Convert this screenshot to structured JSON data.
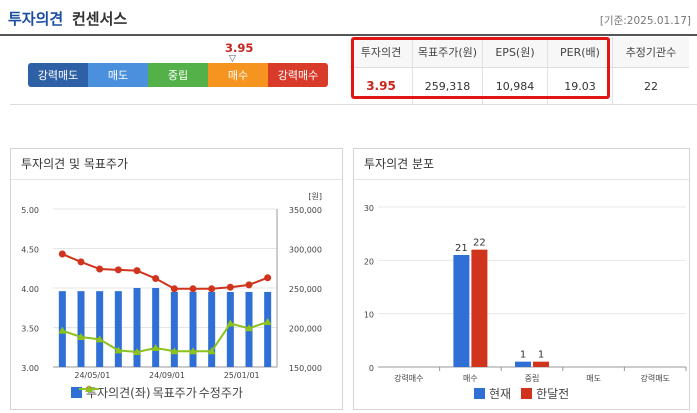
{
  "header": {
    "title_main": "투자의견",
    "title_sub": "컨센서스",
    "date": "[기준:2025.01.17]"
  },
  "rating_bar": {
    "labels": [
      "강력매도",
      "매도",
      "중립",
      "매수",
      "강력매수"
    ],
    "colors": [
      "#2e60a6",
      "#4a90dc",
      "#54b048",
      "#f5941e",
      "#d93b2b"
    ],
    "score_label": "3.95",
    "score": 3.95,
    "pointer": "▽"
  },
  "consensus_table": {
    "headers": [
      "투자의견",
      "목표주가(원)",
      "EPS(원)",
      "PER(배)",
      "추정기관수"
    ],
    "values": [
      "3.95",
      "259,318",
      "10,984",
      "19.03",
      "22"
    ]
  },
  "chart_data": [
    {
      "type": "bar",
      "title": "투자의견 및 목표주가",
      "y2_unit": "[원]",
      "x_ticks": [
        "24/05/01",
        "24/09/01",
        "25/01/01"
      ],
      "left_ticks": [
        "5.00",
        "4.50",
        "4.00",
        "3.50",
        "3.00"
      ],
      "right_ticks": [
        "350,000",
        "300,000",
        "250,000",
        "200,000",
        "150,000"
      ],
      "ylim": [
        3.0,
        5.0
      ],
      "y2lim": [
        150000,
        350000
      ],
      "series": [
        {
          "name": "투자의견(좌)",
          "kind": "bar",
          "color": "#2f6fd6",
          "values": [
            3.96,
            3.96,
            3.96,
            3.96,
            4.0,
            4.0,
            3.95,
            3.95,
            3.95,
            3.95,
            3.95,
            3.95
          ]
        },
        {
          "name": "목표주가",
          "kind": "line",
          "color": "#d0341c",
          "values": [
            293000,
            283000,
            274000,
            273000,
            272000,
            262000,
            249000,
            249000,
            249000,
            251000,
            254000,
            263000
          ]
        },
        {
          "name": "수정주가",
          "kind": "line",
          "color": "#8cc21e",
          "values": [
            196000,
            188000,
            185000,
            171000,
            169000,
            174000,
            170000,
            170000,
            170000,
            205000,
            199000,
            207000
          ]
        }
      ]
    },
    {
      "type": "bar",
      "title": "투자의견 분포",
      "categories": [
        "강력매수",
        "매수",
        "중립",
        "매도",
        "강력매도"
      ],
      "left_ticks": [
        "30",
        "20",
        "10",
        "0"
      ],
      "ylim": [
        0,
        30
      ],
      "series": [
        {
          "name": "현재",
          "color": "#2f6fd6",
          "values": [
            0,
            21,
            1,
            0,
            0
          ]
        },
        {
          "name": "한달전",
          "color": "#d0341c",
          "values": [
            0,
            22,
            1,
            0,
            0
          ]
        }
      ],
      "data_labels": [
        "21",
        "22",
        "1",
        "1"
      ]
    }
  ]
}
